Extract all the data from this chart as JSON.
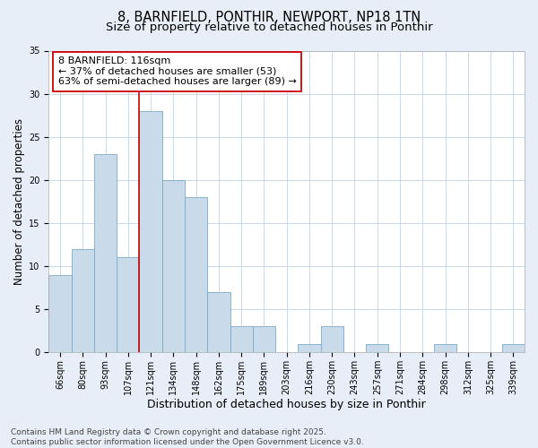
{
  "title_line1": "8, BARNFIELD, PONTHIR, NEWPORT, NP18 1TN",
  "title_line2": "Size of property relative to detached houses in Ponthir",
  "xlabel": "Distribution of detached houses by size in Ponthir",
  "ylabel": "Number of detached properties",
  "categories": [
    "66sqm",
    "80sqm",
    "93sqm",
    "107sqm",
    "121sqm",
    "134sqm",
    "148sqm",
    "162sqm",
    "175sqm",
    "189sqm",
    "203sqm",
    "216sqm",
    "230sqm",
    "243sqm",
    "257sqm",
    "271sqm",
    "284sqm",
    "298sqm",
    "312sqm",
    "325sqm",
    "339sqm"
  ],
  "values": [
    9,
    12,
    23,
    11,
    28,
    20,
    18,
    7,
    3,
    3,
    0,
    1,
    3,
    0,
    1,
    0,
    0,
    1,
    0,
    0,
    1
  ],
  "bar_color": "#c9daea",
  "bar_edgecolor": "#7aaac8",
  "vline_position": 3.5,
  "vline_color": "#cc0000",
  "annotation_text": "8 BARNFIELD: 116sqm\n← 37% of detached houses are smaller (53)\n63% of semi-detached houses are larger (89) →",
  "annotation_box_edgecolor": "#cc0000",
  "annotation_box_facecolor": "#ffffff",
  "ylim": [
    0,
    35
  ],
  "yticks": [
    0,
    5,
    10,
    15,
    20,
    25,
    30,
    35
  ],
  "grid_color": "#c8d8f0",
  "figure_background_color": "#e8eef8",
  "plot_background_color": "#ffffff",
  "footer_text": "Contains HM Land Registry data © Crown copyright and database right 2025.\nContains public sector information licensed under the Open Government Licence v3.0.",
  "title_fontsize": 10.5,
  "subtitle_fontsize": 9.5,
  "xlabel_fontsize": 9,
  "ylabel_fontsize": 8.5,
  "tick_fontsize": 7,
  "annotation_fontsize": 8,
  "footer_fontsize": 6.5
}
